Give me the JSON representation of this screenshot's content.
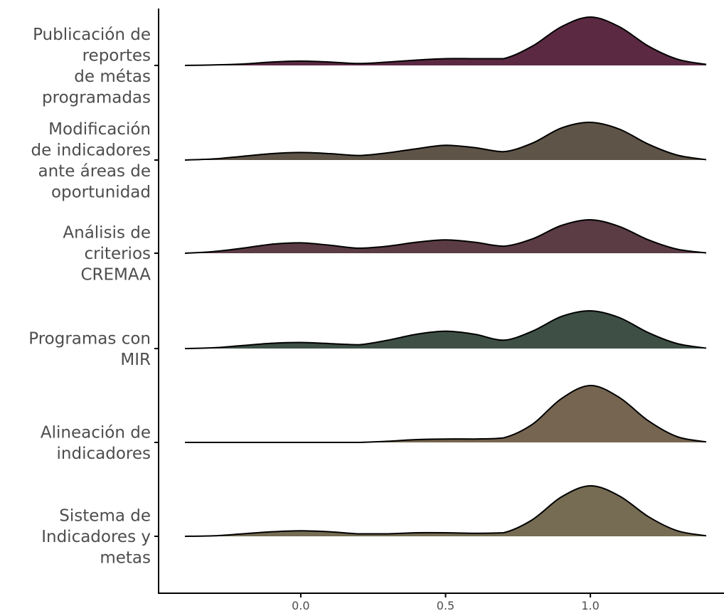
{
  "chart_data": {
    "type": "ridgeline",
    "title": "",
    "xlabel": "",
    "ylabel": "",
    "x_ticks": [
      0.0,
      0.5,
      1.0
    ],
    "x_tick_labels": [
      "0.0",
      "0.5",
      "1.0"
    ],
    "xlim": [
      -0.4,
      1.4
    ],
    "grid": false,
    "series": [
      {
        "name": "Publicación de reportes de métas programadas",
        "label_lines": [
          "Publicación de",
          "reportes",
          "de métas",
          "programadas"
        ],
        "color": "#5b2a42",
        "x": [
          -0.4,
          -0.3,
          -0.2,
          -0.1,
          0.0,
          0.1,
          0.2,
          0.3,
          0.4,
          0.5,
          0.6,
          0.7,
          0.8,
          0.9,
          1.0,
          1.1,
          1.2,
          1.3,
          1.4
        ],
        "density": [
          0.0,
          0.01,
          0.03,
          0.07,
          0.09,
          0.07,
          0.04,
          0.07,
          0.11,
          0.14,
          0.14,
          0.14,
          0.4,
          0.8,
          1.0,
          0.8,
          0.4,
          0.13,
          0.02
        ]
      },
      {
        "name": "Modificación de indicadores ante áreas de oportunidad",
        "label_lines": [
          "Modificación",
          "de  indicadores",
          "ante áreas de",
          "oportunidad"
        ],
        "color": "#5e5447",
        "x": [
          -0.4,
          -0.3,
          -0.2,
          -0.1,
          0.0,
          0.1,
          0.2,
          0.3,
          0.4,
          0.5,
          0.6,
          0.7,
          0.8,
          0.9,
          1.0,
          1.1,
          1.2,
          1.3,
          1.4
        ],
        "density": [
          0.0,
          0.03,
          0.1,
          0.17,
          0.2,
          0.17,
          0.12,
          0.19,
          0.3,
          0.39,
          0.33,
          0.22,
          0.45,
          0.85,
          1.0,
          0.82,
          0.42,
          0.13,
          0.01
        ]
      },
      {
        "name": "Análisis de criterios CREMAA",
        "label_lines": [
          "Análisis de",
          "criterios",
          "CREMAA"
        ],
        "color": "#5b3c44",
        "x": [
          -0.4,
          -0.3,
          -0.2,
          -0.1,
          0.0,
          0.1,
          0.2,
          0.3,
          0.4,
          0.5,
          0.6,
          0.7,
          0.8,
          0.9,
          1.0,
          1.1,
          1.2,
          1.3,
          1.4
        ],
        "density": [
          0.0,
          0.05,
          0.15,
          0.27,
          0.31,
          0.24,
          0.15,
          0.21,
          0.33,
          0.4,
          0.33,
          0.21,
          0.43,
          0.83,
          1.0,
          0.8,
          0.4,
          0.12,
          0.01
        ]
      },
      {
        "name": "Programas con MIR",
        "label_lines": [
          "Programas con",
          "MIR"
        ],
        "color": "#3e5046",
        "x": [
          -0.4,
          -0.3,
          -0.2,
          -0.1,
          0.0,
          0.1,
          0.2,
          0.3,
          0.4,
          0.5,
          0.6,
          0.7,
          0.8,
          0.9,
          1.0,
          1.1,
          1.2,
          1.3,
          1.4
        ],
        "density": [
          0.0,
          0.02,
          0.08,
          0.14,
          0.16,
          0.13,
          0.1,
          0.22,
          0.38,
          0.46,
          0.38,
          0.22,
          0.46,
          0.85,
          1.0,
          0.82,
          0.42,
          0.13,
          0.01
        ]
      },
      {
        "name": "Alineación de indicadores",
        "label_lines": [
          "Alineación de",
          "indicadores"
        ],
        "color": "#766550",
        "x": [
          -0.4,
          -0.3,
          -0.2,
          -0.1,
          0.0,
          0.1,
          0.2,
          0.3,
          0.4,
          0.5,
          0.6,
          0.7,
          0.8,
          0.9,
          1.0,
          1.1,
          1.2,
          1.3,
          1.4
        ],
        "density": [
          0.0,
          0.0,
          0.0,
          0.0,
          0.0,
          0.0,
          0.0,
          0.02,
          0.05,
          0.06,
          0.06,
          0.08,
          0.32,
          0.77,
          1.0,
          0.79,
          0.38,
          0.1,
          0.01
        ]
      },
      {
        "name": "Sistema de Indicadores y metas",
        "label_lines": [
          "Sistema de",
          "Indicadores y",
          "metas"
        ],
        "color": "#756c53",
        "x": [
          -0.4,
          -0.3,
          -0.2,
          -0.1,
          0.0,
          0.1,
          0.2,
          0.3,
          0.4,
          0.5,
          0.6,
          0.7,
          0.8,
          0.9,
          1.0,
          1.1,
          1.2,
          1.3,
          1.4
        ],
        "density": [
          0.0,
          0.01,
          0.05,
          0.09,
          0.11,
          0.09,
          0.05,
          0.05,
          0.07,
          0.07,
          0.06,
          0.07,
          0.33,
          0.78,
          1.0,
          0.8,
          0.39,
          0.11,
          0.01
        ]
      }
    ]
  }
}
